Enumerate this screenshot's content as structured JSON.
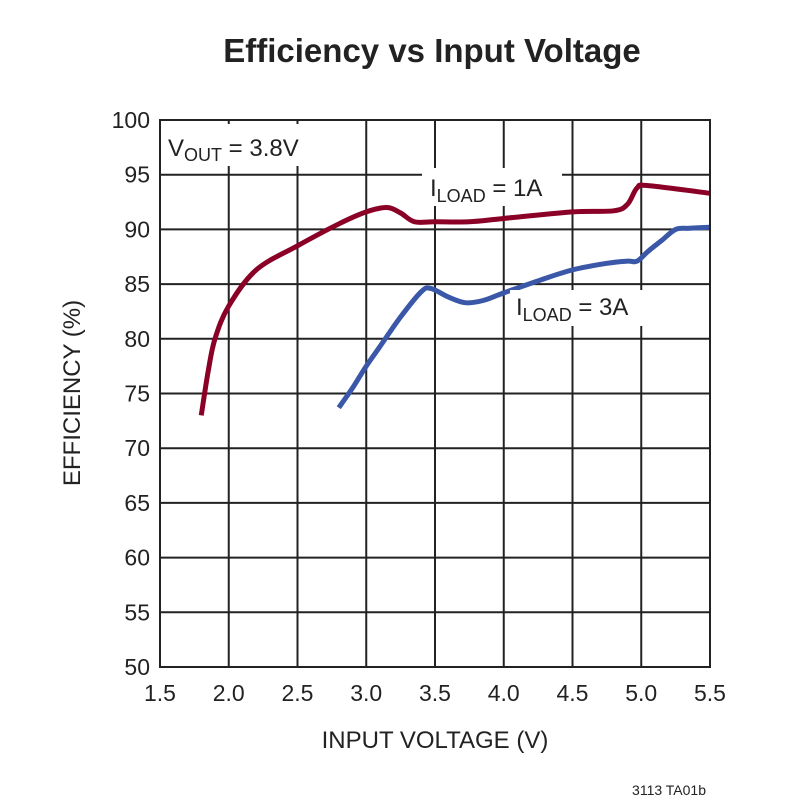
{
  "chart_data": {
    "type": "line",
    "title": "Efficiency vs Input Voltage",
    "xlabel": "INPUT VOLTAGE (V)",
    "ylabel": "EFFICIENCY (%)",
    "xlim": [
      1.5,
      5.5
    ],
    "ylim": [
      50,
      100
    ],
    "xticks": [
      "1.5",
      "2.0",
      "2.5",
      "3.0",
      "3.5",
      "4.0",
      "4.5",
      "5.0",
      "5.5"
    ],
    "yticks": [
      "50",
      "55",
      "60",
      "65",
      "70",
      "75",
      "80",
      "85",
      "90",
      "95",
      "100"
    ],
    "grid": true,
    "annotation": {
      "main": "V",
      "sub": "OUT",
      "rest": " = 3.8V"
    },
    "footnote": "3113 TA01b",
    "series": [
      {
        "name_main": "I",
        "name_sub": "LOAD",
        "name_rest": " = 1A",
        "color": "#8b0026",
        "x": [
          1.8,
          1.85,
          1.9,
          2.0,
          2.2,
          2.5,
          2.8,
          3.0,
          3.15,
          3.25,
          3.35,
          3.5,
          3.75,
          4.0,
          4.5,
          4.8,
          4.9,
          4.97,
          5.05,
          5.5
        ],
        "y": [
          73,
          77,
          80,
          83,
          86.3,
          88.5,
          90.5,
          91.6,
          92,
          91.5,
          90.7,
          90.7,
          90.7,
          91,
          91.6,
          91.7,
          92.3,
          93.8,
          94,
          93.3
        ]
      },
      {
        "name_main": "I",
        "name_sub": "LOAD",
        "name_rest": " = 3A",
        "color": "#3a57a8",
        "x": [
          2.8,
          2.9,
          3.0,
          3.1,
          3.25,
          3.4,
          3.47,
          3.6,
          3.72,
          3.85,
          4.0,
          4.25,
          4.5,
          4.75,
          4.9,
          4.97,
          5.05,
          5.15,
          5.25,
          5.35,
          5.5
        ],
        "y": [
          73.7,
          75.5,
          77.5,
          79.3,
          82,
          84.3,
          84.6,
          83.8,
          83.3,
          83.5,
          84.2,
          85.3,
          86.3,
          86.9,
          87.1,
          87.1,
          88,
          89,
          90,
          90.1,
          90.2
        ]
      }
    ]
  }
}
